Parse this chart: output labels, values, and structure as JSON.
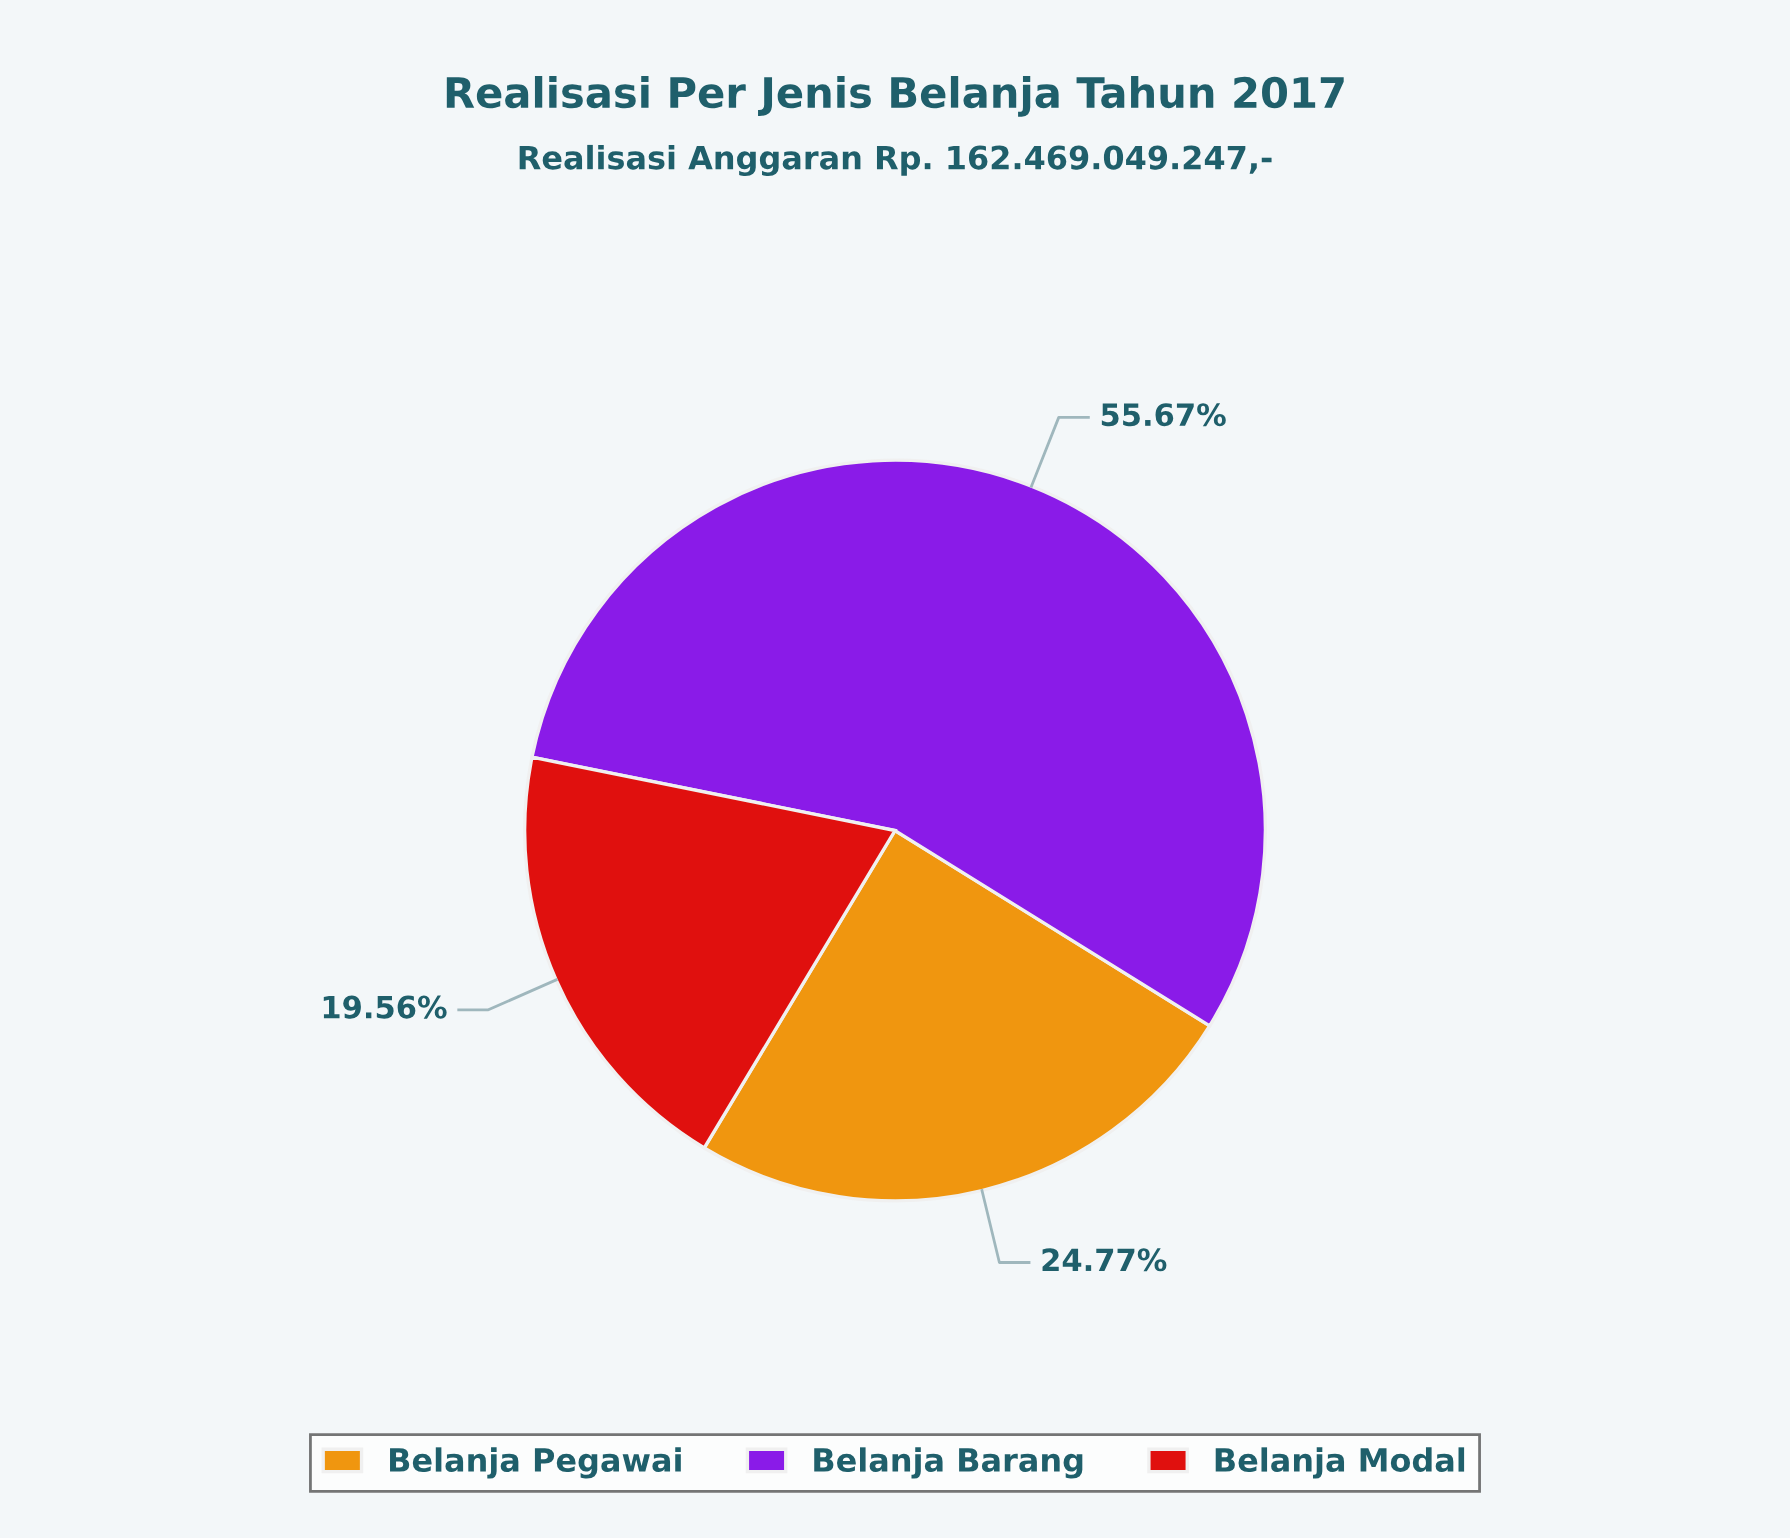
{
  "chart_data": {
    "type": "pie",
    "title": "Realisasi Per Jenis Belanja Tahun 2017",
    "subtitle": "Realisasi Anggaran Rp. 162.469.049.247,-",
    "categories": [
      "Belanja Pegawai",
      "Belanja Barang",
      "Belanja Modal"
    ],
    "values": [
      24.77,
      55.67,
      19.56
    ],
    "colors": [
      "#f0960f",
      "#8a1be8",
      "#e0100e"
    ],
    "value_labels": [
      "24.77%",
      "55.67%",
      "19.56%"
    ],
    "legend": "bottom"
  }
}
